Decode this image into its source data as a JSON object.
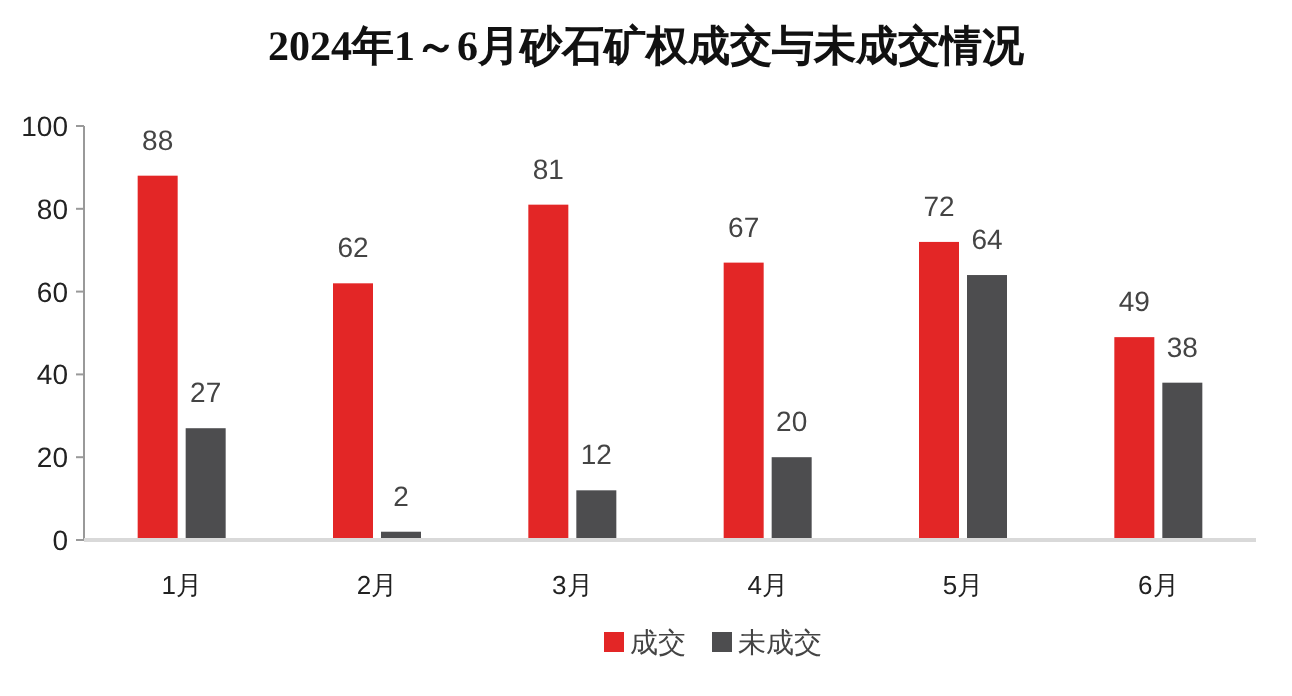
{
  "chart_data": {
    "type": "bar",
    "title": "2024年1～6月砂石矿权成交与未成交情况",
    "categories": [
      "1月",
      "2月",
      "3月",
      "4月",
      "5月",
      "6月"
    ],
    "series": [
      {
        "name": "成交",
        "color": "#e32626",
        "values": [
          88,
          62,
          81,
          67,
          72,
          49
        ]
      },
      {
        "name": "未成交",
        "color": "#4d4d4f",
        "values": [
          27,
          2,
          12,
          20,
          64,
          38
        ]
      }
    ],
    "ylim": [
      0,
      100
    ],
    "yticks": [
      0,
      20,
      40,
      60,
      80,
      100
    ],
    "data_labels": true,
    "grid": false,
    "legend": "bottom"
  }
}
